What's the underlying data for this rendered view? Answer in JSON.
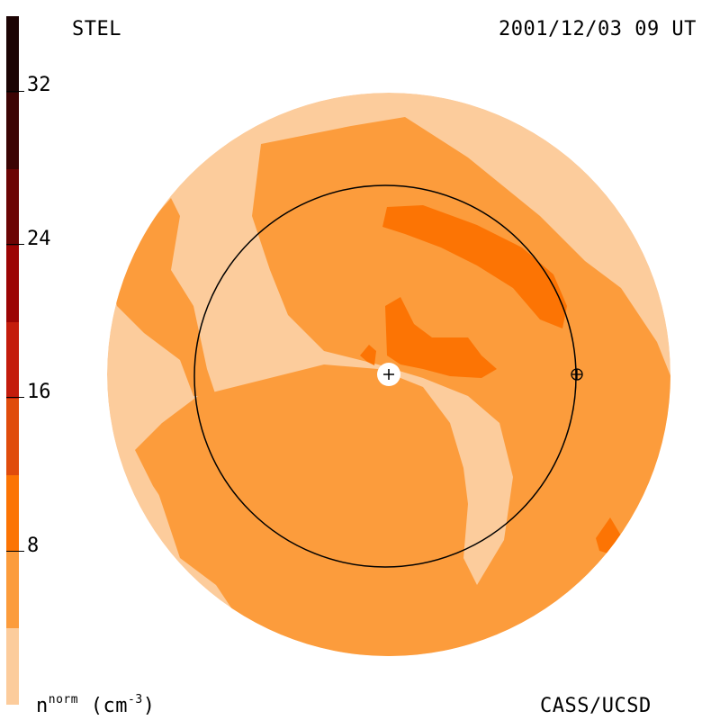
{
  "header": {
    "station": "STEL",
    "datetime": "2001/12/03 09 UT"
  },
  "footer": {
    "units_base": "n",
    "units_sup": "norm",
    "units_rest": " (cm",
    "units_exp": "-3",
    "units_close": ")",
    "credit": "CASS/UCSD"
  },
  "colorbar": {
    "min": 0,
    "max": 36,
    "step": 4,
    "labels": [
      "8",
      "16",
      "24",
      "32"
    ],
    "colors": [
      "#fccc9c",
      "#fc9c3c",
      "#fc7404",
      "#e04c0c",
      "#c41c0c",
      "#9c0404",
      "#6c0404",
      "#3c0404",
      "#1c0404"
    ]
  },
  "map_colors": {
    "level_0": "#fccc9c",
    "level_1": "#fc9c3c",
    "level_2": "#fc7404",
    "line": "#000000",
    "sun_marker": "#ffffff"
  }
}
